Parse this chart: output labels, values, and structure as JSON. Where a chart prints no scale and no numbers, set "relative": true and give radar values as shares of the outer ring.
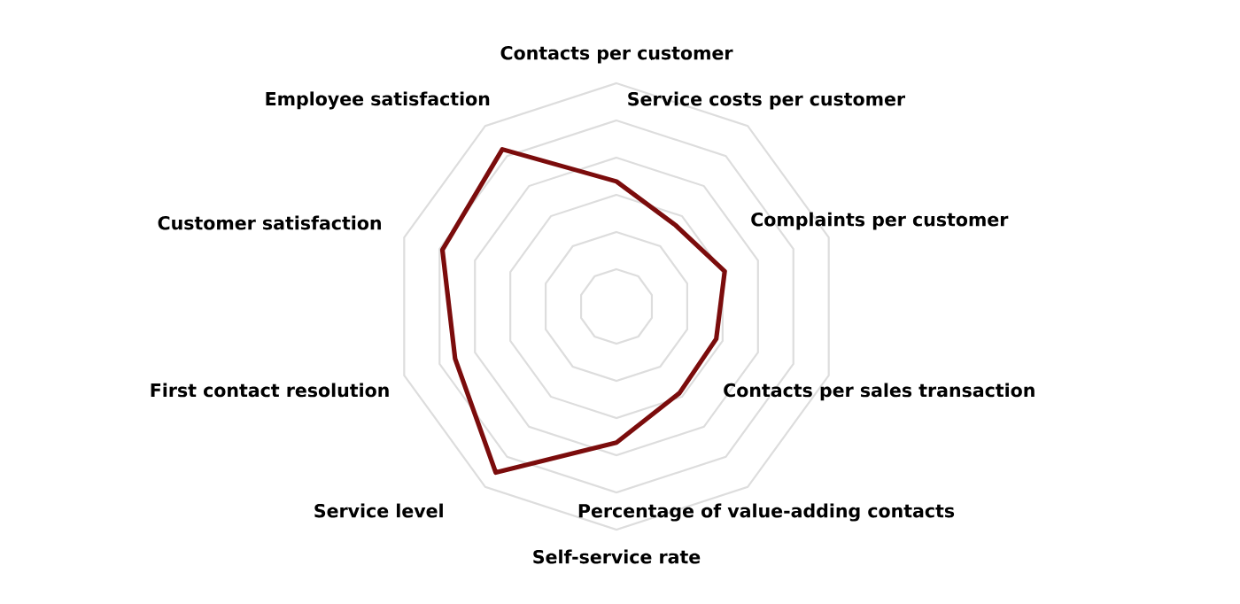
{
  "chart_data": {
    "type": "radar",
    "relative": true,
    "grid": true,
    "categories": [
      "Contacts per customer",
      "Service costs per customer",
      "Complaints per customer",
      "Contacts per sales transaction",
      "Percentage of value-adding contacts",
      "Self-service rate",
      "Service level",
      "First contact resolution",
      "Customer satisfaction",
      "Employee satisfaction"
    ],
    "series": [
      {
        "color": "#7b0c0c",
        "values": [
          0.56,
          0.45,
          0.51,
          0.47,
          0.48,
          0.61,
          0.92,
          0.76,
          0.82,
          0.87
        ]
      }
    ]
  }
}
